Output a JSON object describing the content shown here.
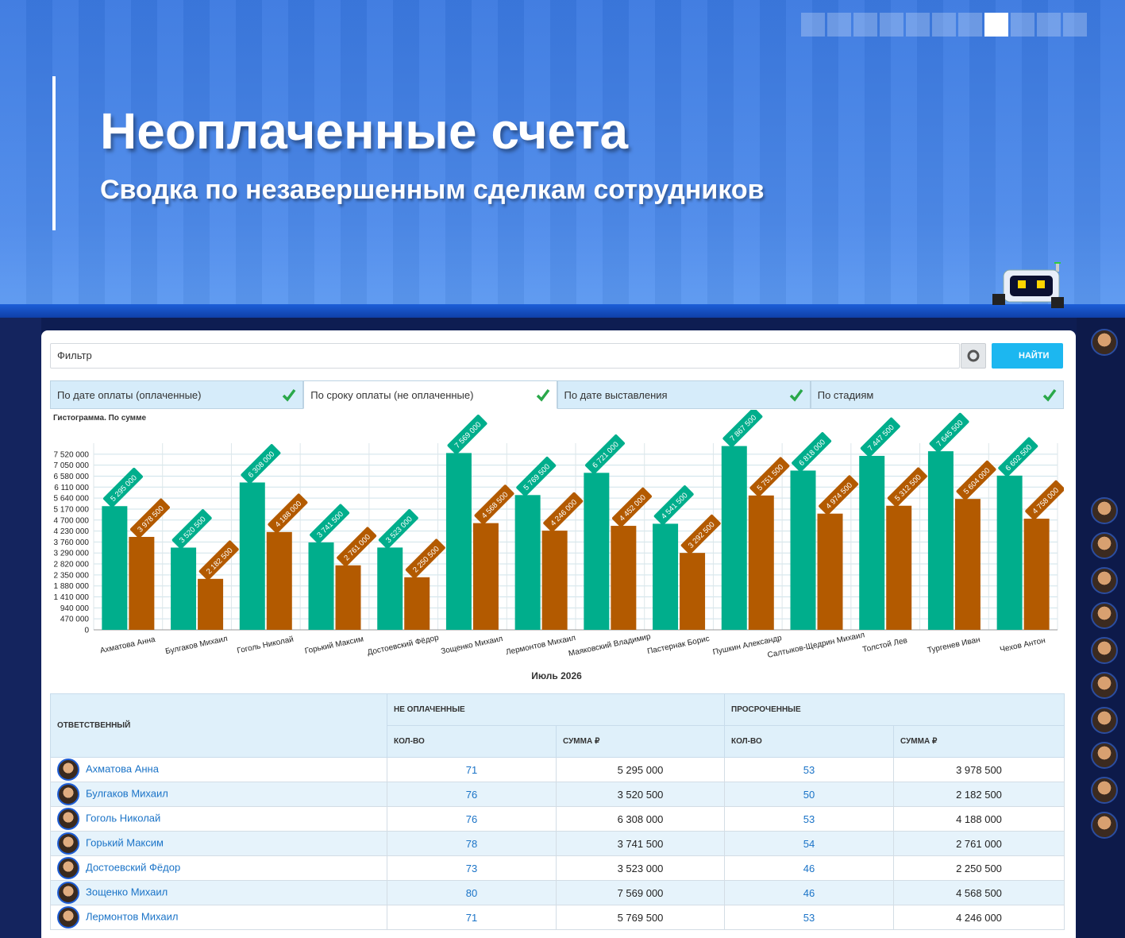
{
  "header": {
    "title": "Неоплаченные счета",
    "subtitle": "Сводка по незавершенным сделкам сотрудников"
  },
  "filter": {
    "placeholder": "Фильтр",
    "button": "НАЙТИ"
  },
  "tabs": [
    "По дате оплаты (оплаченные)",
    "По сроку оплаты (не оплаченные)",
    "По дате выставления",
    "По стадиям"
  ],
  "chart_data": {
    "type": "bar",
    "title": "Гистограмма. По сумме",
    "x_label": "Июль 2026",
    "categories": [
      "Ахматова Анна",
      "Булгаков Михаил",
      "Гоголь Николай",
      "Горький Максим",
      "Достоевский Фёдор",
      "Зощенко Михаил",
      "Лермонтов Михаил",
      "Маяковский Владимир",
      "Пастернак Борис",
      "Пушкин Александр",
      "Салтыков-Щедрин Михаил",
      "Толстой Лев",
      "Тургенев Иван",
      "Чехов Антон"
    ],
    "series": [
      {
        "color": "#00ae8c",
        "values": [
          5295000,
          3520500,
          6308000,
          3741500,
          3523000,
          7569000,
          5769500,
          6721000,
          4541500,
          7867500,
          6818000,
          7447500,
          7645500,
          6602500
        ],
        "value_labels": [
          "5 295 000",
          "3 520 500",
          "6 308 000",
          "3 741 500",
          "3 523 000",
          "7 569 000",
          "5 769 500",
          "6 721 000",
          "4 541 500",
          "7 867 500",
          "6 818 000",
          "7 447 500",
          "7 645 500",
          "6 602 500"
        ]
      },
      {
        "color": "#b35a00",
        "values": [
          3978500,
          2182500,
          4188000,
          2761000,
          2250500,
          4568500,
          4246000,
          4452000,
          3292500,
          5751500,
          4974500,
          5312500,
          5604000,
          4758000
        ],
        "value_labels": [
          "3 978 500",
          "2 182 500",
          "4 188 000",
          "2 761 000",
          "2 250 500",
          "4 568 500",
          "4 246 000",
          "4 452 000",
          "3 292 500",
          "5 751 500",
          "4 974 500",
          "5 312 500",
          "5 604 000",
          "4 758 000"
        ]
      }
    ],
    "ylim": [
      0,
      7990000
    ],
    "yticks": [
      0,
      {
        "value": 470000,
        "label": "470 000"
      },
      {
        "value": 940000,
        "label": "940 000"
      },
      {
        "value": 1410000,
        "label": "1 410 000"
      },
      {
        "value": 1880000,
        "label": "1 880 000"
      },
      {
        "value": 2350000,
        "label": "2 350 000"
      },
      {
        "value": 2820000,
        "label": "2 820 000"
      },
      {
        "value": 3290000,
        "label": "3 290 000"
      },
      {
        "value": 3760000,
        "label": "3 760 000"
      },
      {
        "value": 4230000,
        "label": "4 230 000"
      },
      {
        "value": 4700000,
        "label": "4 700 000"
      },
      {
        "value": 5170000,
        "label": "5 170 000"
      },
      {
        "value": 5640000,
        "label": "5 640 000"
      },
      {
        "value": 6110000,
        "label": "6 110 000"
      },
      {
        "value": 6580000,
        "label": "6 580 000"
      },
      {
        "value": 7050000,
        "label": "7 050 000"
      },
      {
        "value": 7520000,
        "label": "7 520 000"
      }
    ],
    "grid": true
  },
  "table": {
    "header": {
      "responsible": "ОТВЕТСТВЕННЫЙ",
      "unpaid": "НЕ ОПЛАЧЕННЫЕ",
      "overdue": "ПРОСРОЧЕННЫЕ",
      "count": "КОЛ-ВО",
      "sum": "СУММА ₽"
    },
    "rows": [
      [
        "Ахматова Анна",
        71,
        "5 295 000",
        53,
        "3 978 500"
      ],
      [
        "Булгаков Михаил",
        76,
        "3 520 500",
        50,
        "2 182 500"
      ],
      [
        "Гоголь Николай",
        76,
        "6 308 000",
        53,
        "4 188 000"
      ],
      [
        "Горький Максим",
        78,
        "3 741 500",
        54,
        "2 761 000"
      ],
      [
        "Достоевский Фёдор",
        73,
        "3 523 000",
        46,
        "2 250 500"
      ],
      [
        "Зощенко Михаил",
        80,
        "7 569 000",
        46,
        "4 568 500"
      ],
      [
        "Лермонтов Михаил",
        71,
        "5 769 500",
        53,
        "4 246 000"
      ]
    ]
  }
}
